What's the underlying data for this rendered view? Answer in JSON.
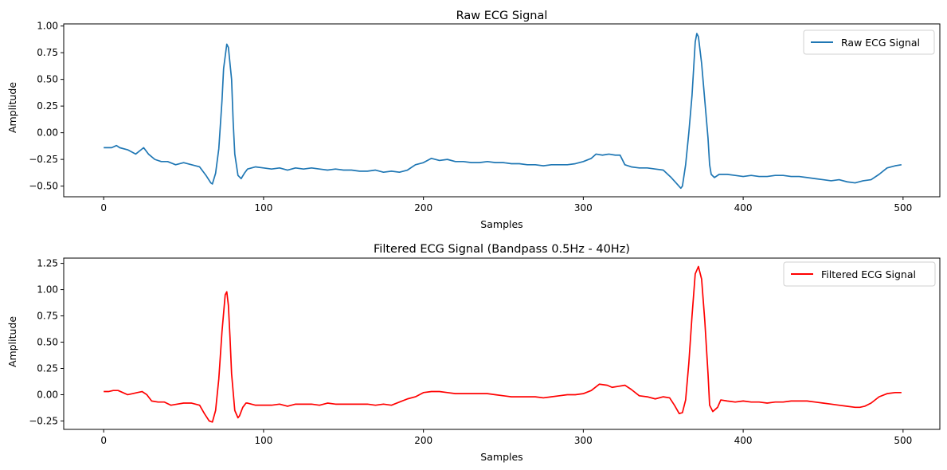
{
  "chart_data": [
    {
      "type": "line",
      "title": "Raw ECG Signal",
      "xlabel": "Samples",
      "ylabel": "Amplitude",
      "xlim": [
        -25,
        523
      ],
      "ylim": [
        -0.6,
        1.02
      ],
      "xticks": [
        0,
        100,
        200,
        300,
        400,
        500
      ],
      "xtick_labels": [
        "0",
        "100",
        "200",
        "300",
        "400",
        "500"
      ],
      "yticks": [
        -0.5,
        -0.25,
        0.0,
        0.25,
        0.5,
        0.75,
        1.0
      ],
      "ytick_labels": [
        "−0.50",
        "−0.25",
        "0.00",
        "0.25",
        "0.50",
        "0.75",
        "1.00"
      ],
      "legend": "top-right",
      "grid": false,
      "series": [
        {
          "name": "Raw ECG Signal",
          "color": "#1f77b4",
          "x": [
            0,
            5,
            8,
            10,
            15,
            20,
            25,
            28,
            32,
            36,
            40,
            45,
            50,
            55,
            60,
            64,
            67,
            68,
            70,
            72,
            74,
            75,
            77,
            78,
            80,
            81,
            82,
            84,
            86,
            88,
            90,
            95,
            100,
            105,
            110,
            115,
            120,
            125,
            130,
            135,
            140,
            145,
            150,
            155,
            160,
            165,
            170,
            175,
            180,
            185,
            190,
            195,
            200,
            205,
            210,
            215,
            220,
            225,
            230,
            235,
            240,
            245,
            250,
            255,
            260,
            265,
            270,
            275,
            280,
            285,
            290,
            295,
            300,
            305,
            308,
            312,
            316,
            320,
            323,
            326,
            330,
            335,
            340,
            345,
            350,
            355,
            358,
            361,
            362,
            364,
            366,
            368,
            369,
            370,
            371,
            372,
            374,
            376,
            378,
            379,
            380,
            382,
            385,
            390,
            395,
            400,
            405,
            410,
            415,
            420,
            425,
            430,
            435,
            440,
            445,
            450,
            455,
            460,
            465,
            470,
            475,
            480,
            485,
            490,
            495,
            499
          ],
          "y": [
            -0.14,
            -0.14,
            -0.12,
            -0.14,
            -0.16,
            -0.2,
            -0.14,
            -0.2,
            -0.25,
            -0.27,
            -0.27,
            -0.3,
            -0.28,
            -0.3,
            -0.32,
            -0.4,
            -0.47,
            -0.48,
            -0.38,
            -0.15,
            0.3,
            0.6,
            0.83,
            0.8,
            0.5,
            0.1,
            -0.2,
            -0.4,
            -0.43,
            -0.38,
            -0.34,
            -0.32,
            -0.33,
            -0.34,
            -0.33,
            -0.35,
            -0.33,
            -0.34,
            -0.33,
            -0.34,
            -0.35,
            -0.34,
            -0.35,
            -0.35,
            -0.36,
            -0.36,
            -0.35,
            -0.37,
            -0.36,
            -0.37,
            -0.35,
            -0.3,
            -0.28,
            -0.24,
            -0.26,
            -0.25,
            -0.27,
            -0.27,
            -0.28,
            -0.28,
            -0.27,
            -0.28,
            -0.28,
            -0.29,
            -0.29,
            -0.3,
            -0.3,
            -0.31,
            -0.3,
            -0.3,
            -0.3,
            -0.29,
            -0.27,
            -0.24,
            -0.2,
            -0.21,
            -0.2,
            -0.21,
            -0.21,
            -0.3,
            -0.32,
            -0.33,
            -0.33,
            -0.34,
            -0.35,
            -0.42,
            -0.47,
            -0.52,
            -0.5,
            -0.3,
            0.0,
            0.35,
            0.6,
            0.85,
            0.93,
            0.9,
            0.65,
            0.3,
            -0.05,
            -0.3,
            -0.39,
            -0.42,
            -0.39,
            -0.39,
            -0.4,
            -0.41,
            -0.4,
            -0.41,
            -0.41,
            -0.4,
            -0.4,
            -0.41,
            -0.41,
            -0.42,
            -0.43,
            -0.44,
            -0.45,
            -0.44,
            -0.46,
            -0.47,
            -0.45,
            -0.44,
            -0.39,
            -0.33,
            -0.31,
            -0.3
          ]
        }
      ]
    },
    {
      "type": "line",
      "title": "Filtered ECG Signal (Bandpass 0.5Hz - 40Hz)",
      "xlabel": "Samples",
      "ylabel": "Amplitude",
      "xlim": [
        -25,
        523
      ],
      "ylim": [
        -0.33,
        1.3
      ],
      "xticks": [
        0,
        100,
        200,
        300,
        400,
        500
      ],
      "xtick_labels": [
        "0",
        "100",
        "200",
        "300",
        "400",
        "500"
      ],
      "yticks": [
        -0.25,
        0.0,
        0.25,
        0.5,
        0.75,
        1.0,
        1.25
      ],
      "ytick_labels": [
        "−0.25",
        "0.00",
        "0.25",
        "0.50",
        "0.75",
        "1.00",
        "1.25"
      ],
      "legend": "top-right",
      "grid": false,
      "series": [
        {
          "name": "Filtered ECG Signal",
          "color": "#ff0000",
          "x": [
            0,
            3,
            6,
            9,
            12,
            15,
            18,
            21,
            24,
            27,
            30,
            34,
            38,
            42,
            46,
            50,
            55,
            60,
            63,
            66,
            68,
            70,
            72,
            74,
            76,
            77,
            78,
            79,
            80,
            82,
            84,
            85,
            87,
            89,
            90,
            95,
            100,
            105,
            110,
            115,
            120,
            125,
            130,
            135,
            140,
            145,
            150,
            155,
            160,
            165,
            170,
            175,
            180,
            185,
            190,
            195,
            200,
            205,
            210,
            215,
            220,
            225,
            230,
            235,
            240,
            245,
            250,
            255,
            260,
            265,
            270,
            275,
            280,
            285,
            290,
            295,
            300,
            305,
            310,
            315,
            318,
            322,
            326,
            330,
            335,
            340,
            345,
            350,
            354,
            357,
            360,
            362,
            364,
            366,
            368,
            370,
            372,
            374,
            376,
            378,
            379,
            381,
            384,
            386,
            390,
            395,
            400,
            405,
            410,
            415,
            420,
            425,
            430,
            435,
            440,
            445,
            450,
            455,
            460,
            465,
            470,
            473,
            476,
            480,
            485,
            490,
            495,
            499
          ],
          "y": [
            0.03,
            0.03,
            0.04,
            0.04,
            0.02,
            0.0,
            0.01,
            0.02,
            0.03,
            0.0,
            -0.06,
            -0.07,
            -0.07,
            -0.1,
            -0.09,
            -0.08,
            -0.08,
            -0.1,
            -0.18,
            -0.25,
            -0.26,
            -0.15,
            0.15,
            0.6,
            0.95,
            0.98,
            0.85,
            0.55,
            0.2,
            -0.15,
            -0.22,
            -0.2,
            -0.12,
            -0.08,
            -0.08,
            -0.1,
            -0.1,
            -0.1,
            -0.09,
            -0.11,
            -0.09,
            -0.09,
            -0.09,
            -0.1,
            -0.08,
            -0.09,
            -0.09,
            -0.09,
            -0.09,
            -0.09,
            -0.1,
            -0.09,
            -0.1,
            -0.07,
            -0.04,
            -0.02,
            0.02,
            0.03,
            0.03,
            0.02,
            0.01,
            0.01,
            0.01,
            0.01,
            0.01,
            0.0,
            -0.01,
            -0.02,
            -0.02,
            -0.02,
            -0.02,
            -0.03,
            -0.02,
            -0.01,
            0.0,
            0.0,
            0.01,
            0.04,
            0.1,
            0.09,
            0.07,
            0.08,
            0.09,
            0.05,
            -0.01,
            -0.02,
            -0.04,
            -0.02,
            -0.03,
            -0.1,
            -0.18,
            -0.17,
            -0.05,
            0.3,
            0.75,
            1.15,
            1.22,
            1.1,
            0.7,
            0.2,
            -0.1,
            -0.16,
            -0.12,
            -0.05,
            -0.06,
            -0.07,
            -0.06,
            -0.07,
            -0.07,
            -0.08,
            -0.07,
            -0.07,
            -0.06,
            -0.06,
            -0.06,
            -0.07,
            -0.08,
            -0.09,
            -0.1,
            -0.11,
            -0.12,
            -0.12,
            -0.11,
            -0.08,
            -0.02,
            0.01,
            0.02,
            0.02
          ]
        }
      ]
    }
  ]
}
